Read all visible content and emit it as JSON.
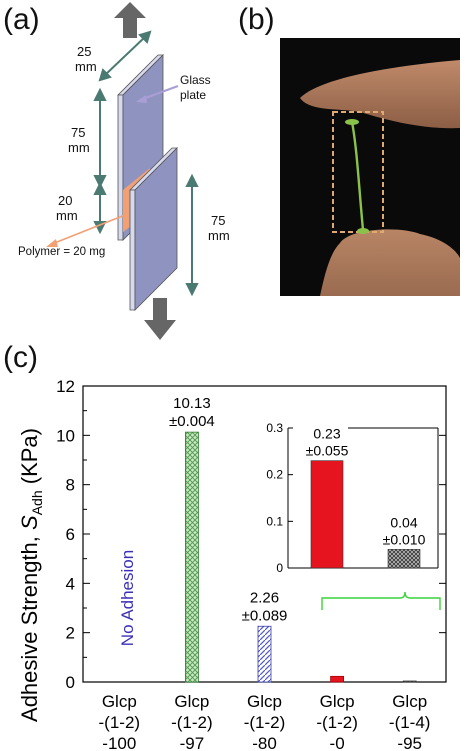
{
  "panels": {
    "a": {
      "label": "(a)",
      "dimensions": [
        "25",
        "mm",
        "75",
        "mm",
        "20",
        "mm",
        "75",
        "mm"
      ],
      "glass_label": [
        "Glass",
        "plate"
      ],
      "polymer_label": "Polymer = 20 mg",
      "colors": {
        "plate": "#8f93bf",
        "plate_face": "#d7d9ee",
        "polymer": "#f2a073",
        "arrow": "#666666",
        "dim_arrow": "#4a7a72"
      }
    },
    "b": {
      "label": "(b)",
      "colors": {
        "fiber": "#8bc34a",
        "box": "#e0a970",
        "background": "#0a0a0a"
      }
    },
    "c": {
      "label": "(c)"
    }
  },
  "chart_data": {
    "type": "bar",
    "ylabel": "Adhesive Strength, S_Adh (KPa)",
    "ylim": [
      0,
      12
    ],
    "yticks": [
      "0",
      "2",
      "4",
      "6",
      "8",
      "10",
      "12"
    ],
    "categories": [
      [
        "Glcp",
        "-(1-2)",
        "-100"
      ],
      [
        "Glcp",
        "-(1-2)",
        "-97"
      ],
      [
        "Glcp",
        "-(1-2)",
        "-80"
      ],
      [
        "Glcp",
        "-(1-2)",
        "-0"
      ],
      [
        "Glcp",
        "-(1-4)",
        "-95"
      ]
    ],
    "values": [
      0,
      10.13,
      2.26,
      0.23,
      0.04
    ],
    "data_labels": [
      [
        "",
        ""
      ],
      [
        "10.13",
        "±0.004"
      ],
      [
        "2.26",
        "±0.089"
      ],
      [
        "",
        ""
      ],
      [
        "",
        ""
      ]
    ],
    "annotation": "No Adhesion",
    "bar_colors": [
      "#ffffff",
      "#9fcf9a",
      "#8c93d6",
      "#e6141e",
      "#555555"
    ],
    "inset": {
      "ylim": [
        0,
        0.3
      ],
      "yticks": [
        "0",
        "0.1",
        "0.2",
        "0.3"
      ],
      "values": [
        0.23,
        0.04
      ],
      "data_labels": [
        [
          "0.23",
          "±0.055"
        ],
        [
          "0.04",
          "±0.010"
        ]
      ],
      "bar_colors": [
        "#e6141e",
        "#555555"
      ]
    }
  }
}
